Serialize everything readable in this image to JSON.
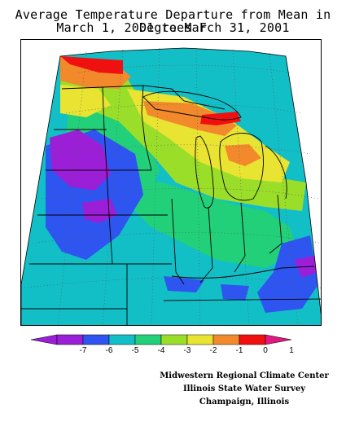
{
  "title": {
    "line1": "Average Temperature Departure from Mean in Degrees F",
    "line2": "March 1, 2001 to March 31, 2001"
  },
  "legend": {
    "ticks": [
      "-7",
      "-6",
      "-5",
      "-4",
      "-3",
      "-2",
      "-1",
      "0",
      "1"
    ],
    "colors": [
      "#9b1fd6",
      "#2f55f0",
      "#12bfc7",
      "#22d07a",
      "#9bde2a",
      "#e9e332",
      "#f28a2c",
      "#f01010",
      "#e01880"
    ]
  },
  "credits": {
    "line1": "Midwestern Regional Climate Center",
    "line2": "Illinois State Water Survey",
    "line3": "Champaign, Illinois"
  },
  "map_colors": {
    "below_minus7": "#9b1fd6",
    "minus6_to_minus7": "#9b1fd6",
    "minus5_to_minus6": "#2f55f0",
    "minus4_to_minus5": "#12bfc7",
    "minus3_to_minus4": "#22d07a",
    "minus2_to_minus3": "#9bde2a",
    "minus1_to_minus2": "#e9e332",
    "zero_to_minus1": "#f28a2c",
    "zero_to_one": "#f01010"
  }
}
